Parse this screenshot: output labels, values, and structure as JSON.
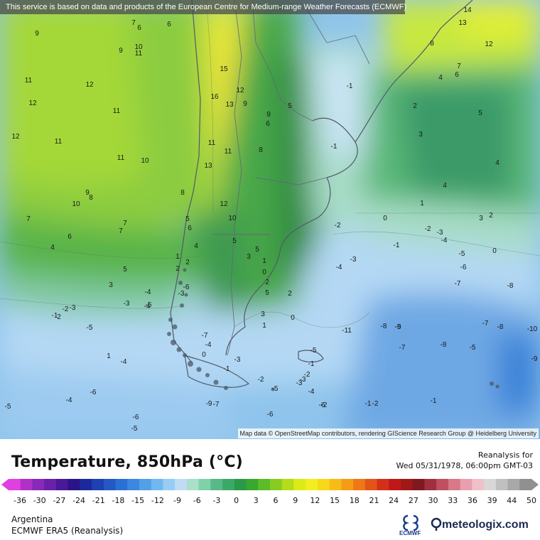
{
  "notice": "This service is based on data and products of the European Centre for Medium-range Weather Forecasts (ECMWF)",
  "attribution": "Map data © OpenStreetMap contributors, rendering GIScience Research Group @ Heidelberg University",
  "title": "Temperature, 850hPa (°C)",
  "reanalysis_label": "Reanalysis for",
  "valid_time": "Wed 05/31/1978, 06:00pm GMT-03",
  "region": "Argentina",
  "model": "ECMWF ERA5 (Reanalysis)",
  "ecmwf_logo_text": "ECMWF",
  "meteologix_text": "meteologix.com",
  "colorbar": {
    "ticks": [
      "-36",
      "-30",
      "-27",
      "-24",
      "-21",
      "-18",
      "-15",
      "-12",
      "-9",
      "-6",
      "-3",
      "0",
      "3",
      "6",
      "9",
      "12",
      "15",
      "18",
      "21",
      "24",
      "27",
      "30",
      "33",
      "36",
      "39",
      "44",
      "50"
    ],
    "colors": [
      "#e040e0",
      "#b030c8",
      "#8a28b8",
      "#6a20a8",
      "#4a1898",
      "#2a1488",
      "#1a2a9a",
      "#1e40b0",
      "#2458c4",
      "#2a70d4",
      "#3a88e0",
      "#52a0e8",
      "#70b8f0",
      "#98ccf4",
      "#c0dcf4",
      "#a8e0c8",
      "#80d0a8",
      "#58b888",
      "#3ca868",
      "#2a9a48",
      "#38a830",
      "#5cbc28",
      "#88cc20",
      "#b4dc18",
      "#dcea18",
      "#f4ee20",
      "#f8d818",
      "#f8bc18",
      "#f49c18",
      "#ee7818",
      "#e45418",
      "#d43018",
      "#c01818",
      "#a01818",
      "#801820",
      "#a03040",
      "#c05060",
      "#d87888",
      "#e8a0b0",
      "#f0c0c8",
      "#d8d8d8",
      "#c0c0c0",
      "#a8a8a8",
      "#909090"
    ]
  },
  "contour_labels": [
    {
      "t": "9"
    },
    {
      "t": "7"
    },
    {
      "t": "6"
    },
    {
      "t": "6"
    },
    {
      "t": "9"
    },
    {
      "t": "10"
    },
    {
      "t": "11"
    },
    {
      "t": "11"
    },
    {
      "t": "12"
    },
    {
      "t": "12"
    },
    {
      "t": "11"
    },
    {
      "t": "12"
    },
    {
      "t": "11"
    },
    {
      "t": "10"
    },
    {
      "t": "11"
    },
    {
      "t": "10"
    },
    {
      "t": "9"
    },
    {
      "t": "8"
    },
    {
      "t": "7"
    },
    {
      "t": "7"
    },
    {
      "t": "7"
    },
    {
      "t": "6"
    },
    {
      "t": "4"
    },
    {
      "t": "5"
    },
    {
      "t": "3"
    },
    {
      "t": "15"
    },
    {
      "t": "16"
    },
    {
      "t": "13"
    },
    {
      "t": "12"
    },
    {
      "t": "9"
    },
    {
      "t": "11"
    },
    {
      "t": "11"
    },
    {
      "t": "13"
    },
    {
      "t": "12"
    },
    {
      "t": "10"
    },
    {
      "t": "8"
    },
    {
      "t": "9"
    },
    {
      "t": "6"
    },
    {
      "t": "8"
    },
    {
      "t": "5"
    },
    {
      "t": "6"
    },
    {
      "t": "5"
    },
    {
      "t": "4"
    },
    {
      "t": "5"
    },
    {
      "t": "3"
    },
    {
      "t": "2"
    },
    {
      "t": "1"
    },
    {
      "t": "2"
    },
    {
      "t": "1"
    },
    {
      "t": "0"
    },
    {
      "t": "2"
    },
    {
      "t": "5"
    },
    {
      "t": "5"
    },
    {
      "t": "3"
    },
    {
      "t": "2"
    },
    {
      "t": "1"
    },
    {
      "t": "0"
    },
    {
      "t": "-1"
    },
    {
      "t": "-1"
    },
    {
      "t": "14"
    },
    {
      "t": "13"
    },
    {
      "t": "8"
    },
    {
      "t": "12"
    },
    {
      "t": "7"
    },
    {
      "t": "6"
    },
    {
      "t": "4"
    },
    {
      "t": "5"
    },
    {
      "t": "2"
    },
    {
      "t": "3"
    },
    {
      "t": "4"
    },
    {
      "t": "4"
    },
    {
      "t": "1"
    },
    {
      "t": "2"
    },
    {
      "t": "3"
    },
    {
      "t": "0"
    },
    {
      "t": "0"
    },
    {
      "t": "-2"
    },
    {
      "t": "-3"
    },
    {
      "t": "-4"
    },
    {
      "t": "-1"
    },
    {
      "t": "-2"
    },
    {
      "t": "-3"
    },
    {
      "t": "-4"
    },
    {
      "t": "-5"
    },
    {
      "t": "-6"
    },
    {
      "t": "-7"
    },
    {
      "t": "-8"
    },
    {
      "t": "-8"
    },
    {
      "t": "-9"
    },
    {
      "t": "-10"
    },
    {
      "t": "-7"
    },
    {
      "t": "-5"
    },
    {
      "t": "-8"
    },
    {
      "t": "-7"
    },
    {
      "t": "-8"
    },
    {
      "t": "-9"
    },
    {
      "t": "-11"
    },
    {
      "t": "-5"
    },
    {
      "t": "-1"
    },
    {
      "t": "-2"
    },
    {
      "t": "-3"
    },
    {
      "t": "-4"
    },
    {
      "t": "-2"
    },
    {
      "t": "-3"
    },
    {
      "t": "-4"
    },
    {
      "t": "-1"
    },
    {
      "t": "0"
    },
    {
      "t": "1"
    },
    {
      "t": "2"
    },
    {
      "t": "-1"
    },
    {
      "t": "-2"
    },
    {
      "t": "-3"
    },
    {
      "t": "-4"
    },
    {
      "t": "-3"
    },
    {
      "t": "-4"
    },
    {
      "t": "-5"
    },
    {
      "t": "-6"
    },
    {
      "t": "-4"
    },
    {
      "t": "-5"
    },
    {
      "t": "-6"
    },
    {
      "t": "-5"
    },
    {
      "t": "-7"
    },
    {
      "t": "-5"
    },
    {
      "t": "-6"
    },
    {
      "t": "-1"
    },
    {
      "t": "-2"
    },
    {
      "t": "-1"
    },
    {
      "t": "-3"
    },
    {
      "t": "-4"
    },
    {
      "t": "-5"
    },
    {
      "t": "-7"
    },
    {
      "t": "-9"
    },
    {
      "t": "-6"
    },
    {
      "t": "-5"
    },
    {
      "t": "-2"
    },
    {
      "t": "-3"
    },
    {
      "t": "-6"
    },
    {
      "t": "1"
    },
    {
      "t": "2"
    }
  ]
}
